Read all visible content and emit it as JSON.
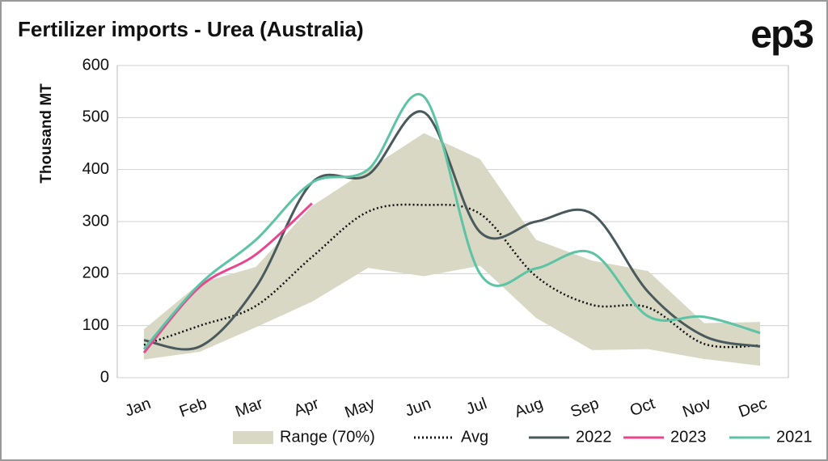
{
  "chart_data": {
    "type": "line",
    "title": "Fertilizer imports - Urea (Australia)",
    "logo": "ep3",
    "y_label": "Thousand MT",
    "categories": [
      "Jan",
      "Feb",
      "Mar",
      "Apr",
      "May",
      "Jun",
      "Jul",
      "Aug",
      "Sep",
      "Oct",
      "Nov",
      "Dec"
    ],
    "ylim": [
      0,
      600
    ],
    "yticks": [
      0,
      100,
      200,
      300,
      400,
      500,
      600
    ],
    "grid": true,
    "legend": "bottom",
    "range": {
      "name": "Range (70%)",
      "color": "#d8d8c4",
      "low": [
        35,
        50,
        97,
        146,
        211,
        195,
        215,
        115,
        53,
        55,
        36,
        23
      ],
      "high": [
        93,
        182,
        213,
        330,
        400,
        470,
        420,
        265,
        225,
        205,
        105,
        107
      ]
    },
    "series": [
      {
        "name": "Avg",
        "color": "#111111",
        "dash": "dotted",
        "values": [
          63,
          100,
          138,
          232,
          319,
          332,
          315,
          195,
          140,
          135,
          65,
          62
        ]
      },
      {
        "name": "2022",
        "color": "#4a5a5c",
        "values": [
          72,
          60,
          174,
          375,
          390,
          510,
          280,
          300,
          315,
          165,
          80,
          60
        ]
      },
      {
        "name": "2023",
        "color": "#e8468f",
        "values": [
          48,
          175,
          237,
          335,
          null,
          null,
          null,
          null,
          null,
          null,
          null,
          null
        ]
      },
      {
        "name": "2021",
        "color": "#5cc3a4",
        "values": [
          55,
          180,
          265,
          375,
          400,
          540,
          200,
          210,
          240,
          118,
          117,
          86
        ]
      }
    ]
  }
}
